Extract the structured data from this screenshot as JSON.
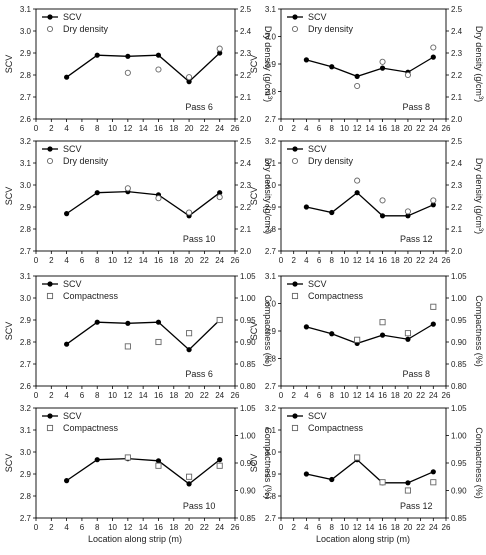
{
  "figure": {
    "shared_xlabel": "Location along strip (m)"
  },
  "chart_data": [
    {
      "id": "c1",
      "type": "line",
      "pass_label": "Pass 6",
      "ylabel_left": "SCV",
      "ylabel_right_main": "Dry density (g/cm",
      "ylabel_right_sup": "3",
      "ylabel_right_end": ")",
      "xlim": [
        0,
        26
      ],
      "xticks": [
        0,
        2,
        4,
        6,
        8,
        10,
        12,
        14,
        16,
        18,
        20,
        22,
        24,
        26
      ],
      "ylim": [
        2.6,
        3.1
      ],
      "yticks": [
        "2.6",
        "2.7",
        "2.8",
        "2.9",
        "3.0",
        "3.1"
      ],
      "ylim_right": [
        2.0,
        2.5
      ],
      "yticks_right": [
        "2.0",
        "2.1",
        "2.2",
        "2.3",
        "2.4",
        "2.5"
      ],
      "series": [
        {
          "name": "SCV",
          "marker": "filled-circle",
          "x": [
            4,
            8,
            12,
            16,
            20,
            24
          ],
          "y": [
            2.79,
            2.89,
            2.885,
            2.89,
            2.77,
            2.9
          ]
        },
        {
          "name": "Dry density",
          "marker": "open-circle",
          "axis": "right",
          "x": [
            12,
            16,
            20,
            24
          ],
          "y": [
            2.21,
            2.225,
            2.19,
            2.32
          ]
        }
      ]
    },
    {
      "id": "c2",
      "type": "line",
      "pass_label": "Pass 8",
      "ylabel_left": "SCV",
      "ylabel_right_main": "Dry density (g/cm",
      "ylabel_right_sup": "3",
      "ylabel_right_end": ")",
      "xlim": [
        0,
        26
      ],
      "xticks": [
        0,
        2,
        4,
        6,
        8,
        10,
        12,
        14,
        16,
        18,
        20,
        22,
        24,
        26
      ],
      "ylim": [
        2.7,
        3.1
      ],
      "yticks": [
        "2.7",
        "2.8",
        "2.9",
        "3.0",
        "3.1"
      ],
      "ylim_right": [
        2.0,
        2.5
      ],
      "yticks_right": [
        "2.0",
        "2.1",
        "2.2",
        "2.3",
        "2.4",
        "2.5"
      ],
      "series": [
        {
          "name": "SCV",
          "marker": "filled-circle",
          "x": [
            4,
            8,
            12,
            16,
            20,
            24
          ],
          "y": [
            2.915,
            2.89,
            2.855,
            2.885,
            2.87,
            2.925
          ]
        },
        {
          "name": "Dry density",
          "marker": "open-circle",
          "axis": "right",
          "x": [
            12,
            16,
            20,
            24
          ],
          "y": [
            2.15,
            2.26,
            2.2,
            2.325
          ]
        }
      ]
    },
    {
      "id": "c3",
      "type": "line",
      "pass_label": "Pass 10",
      "ylabel_left": "SCV",
      "ylabel_right_main": "Dry density (g/cm",
      "ylabel_right_sup": "3",
      "ylabel_right_end": ")",
      "xlim": [
        0,
        26
      ],
      "xticks": [
        0,
        2,
        4,
        6,
        8,
        10,
        12,
        14,
        16,
        18,
        20,
        22,
        24,
        26
      ],
      "ylim": [
        2.7,
        3.2
      ],
      "yticks": [
        "2.7",
        "2.8",
        "2.9",
        "3.0",
        "3.1",
        "3.2"
      ],
      "ylim_right": [
        2.0,
        2.5
      ],
      "yticks_right": [
        "2.0",
        "2.1",
        "2.2",
        "2.3",
        "2.4",
        "2.5"
      ],
      "series": [
        {
          "name": "SCV",
          "marker": "filled-circle",
          "x": [
            4,
            8,
            12,
            16,
            20,
            24
          ],
          "y": [
            2.87,
            2.965,
            2.97,
            2.955,
            2.86,
            2.965
          ]
        },
        {
          "name": "Dry density",
          "marker": "open-circle",
          "axis": "right",
          "x": [
            12,
            16,
            20,
            24
          ],
          "y": [
            2.285,
            2.24,
            2.175,
            2.245
          ]
        }
      ]
    },
    {
      "id": "c4",
      "type": "line",
      "pass_label": "Pass 12",
      "ylabel_left": "SCV",
      "ylabel_right_main": "Dry density (g/cm",
      "ylabel_right_sup": "3",
      "ylabel_right_end": ")",
      "xlim": [
        0,
        26
      ],
      "xticks": [
        0,
        2,
        4,
        6,
        8,
        10,
        12,
        14,
        16,
        18,
        20,
        22,
        24,
        26
      ],
      "ylim": [
        2.7,
        3.2
      ],
      "yticks": [
        "2.7",
        "2.8",
        "2.9",
        "3.0",
        "3.1",
        "3.2"
      ],
      "ylim_right": [
        2.0,
        2.5
      ],
      "yticks_right": [
        "2.0",
        "2.1",
        "2.2",
        "2.3",
        "2.4",
        "2.5"
      ],
      "series": [
        {
          "name": "SCV",
          "marker": "filled-circle",
          "x": [
            4,
            8,
            12,
            16,
            20,
            24
          ],
          "y": [
            2.9,
            2.875,
            2.965,
            2.86,
            2.86,
            2.91
          ]
        },
        {
          "name": "Dry density",
          "marker": "open-circle",
          "axis": "right",
          "x": [
            12,
            16,
            20,
            24
          ],
          "y": [
            2.32,
            2.23,
            2.18,
            2.23
          ]
        }
      ]
    },
    {
      "id": "c5",
      "type": "line",
      "pass_label": "Pass 6",
      "ylabel_left": "SCV",
      "ylabel_right_main": "Compactness (%)",
      "ylabel_right_sup": "",
      "ylabel_right_end": "",
      "xlim": [
        0,
        26
      ],
      "xticks": [
        0,
        2,
        4,
        6,
        8,
        10,
        12,
        14,
        16,
        18,
        20,
        22,
        24,
        26
      ],
      "ylim": [
        2.6,
        3.1
      ],
      "yticks": [
        "2.6",
        "2.7",
        "2.8",
        "2.9",
        "3.0",
        "3.1"
      ],
      "ylim_right": [
        0.8,
        1.05
      ],
      "yticks_right": [
        "0.80",
        "0.85",
        "0.90",
        "0.95",
        "1.00",
        "1.05"
      ],
      "series": [
        {
          "name": "SCV",
          "marker": "filled-circle",
          "x": [
            4,
            8,
            12,
            16,
            20,
            24
          ],
          "y": [
            2.79,
            2.89,
            2.885,
            2.89,
            2.765,
            2.9
          ]
        },
        {
          "name": "Compactness",
          "marker": "open-square",
          "axis": "right",
          "x": [
            12,
            16,
            20,
            24
          ],
          "y": [
            0.89,
            0.9,
            0.92,
            0.95
          ]
        }
      ]
    },
    {
      "id": "c6",
      "type": "line",
      "pass_label": "Pass 8",
      "ylabel_left": "SCV",
      "ylabel_right_main": "Compactness (%)",
      "ylabel_right_sup": "",
      "ylabel_right_end": "",
      "xlim": [
        0,
        26
      ],
      "xticks": [
        0,
        2,
        4,
        6,
        8,
        10,
        12,
        14,
        16,
        18,
        20,
        22,
        24,
        26
      ],
      "ylim": [
        2.7,
        3.1
      ],
      "yticks": [
        "2.7",
        "2.8",
        "2.9",
        "3.0",
        "3.1"
      ],
      "ylim_right": [
        0.8,
        1.05
      ],
      "yticks_right": [
        "0.80",
        "0.85",
        "0.90",
        "0.95",
        "1.00",
        "1.05"
      ],
      "series": [
        {
          "name": "SCV",
          "marker": "filled-circle",
          "x": [
            4,
            8,
            12,
            16,
            20,
            24
          ],
          "y": [
            2.915,
            2.89,
            2.855,
            2.885,
            2.87,
            2.925
          ]
        },
        {
          "name": "Compactness",
          "marker": "open-square",
          "axis": "right",
          "x": [
            12,
            16,
            20,
            24
          ],
          "y": [
            0.905,
            0.945,
            0.92,
            0.98
          ]
        }
      ]
    },
    {
      "id": "c7",
      "type": "line",
      "pass_label": "Pass 10",
      "ylabel_left": "SCV",
      "ylabel_right_main": "Compactness (%)",
      "ylabel_right_sup": "",
      "ylabel_right_end": "",
      "xlim": [
        0,
        26
      ],
      "xticks": [
        0,
        2,
        4,
        6,
        8,
        10,
        12,
        14,
        16,
        18,
        20,
        22,
        24,
        26
      ],
      "ylim": [
        2.7,
        3.2
      ],
      "yticks": [
        "2.7",
        "2.8",
        "2.9",
        "3.0",
        "3.1",
        "3.2"
      ],
      "ylim_right": [
        0.85,
        1.05
      ],
      "yticks_right": [
        "0.85",
        "0.90",
        "0.95",
        "1.00",
        "1.05"
      ],
      "series": [
        {
          "name": "SCV",
          "marker": "filled-circle",
          "x": [
            4,
            8,
            12,
            16,
            20,
            24
          ],
          "y": [
            2.87,
            2.965,
            2.97,
            2.96,
            2.855,
            2.965
          ]
        },
        {
          "name": "Compactness",
          "marker": "open-square",
          "axis": "right",
          "x": [
            12,
            16,
            20,
            24
          ],
          "y": [
            0.96,
            0.945,
            0.925,
            0.945
          ]
        }
      ]
    },
    {
      "id": "c8",
      "type": "line",
      "pass_label": "Pass 12",
      "ylabel_left": "SCV",
      "ylabel_right_main": "Compactness (%)",
      "ylabel_right_sup": "",
      "ylabel_right_end": "",
      "xlim": [
        0,
        26
      ],
      "xticks": [
        0,
        2,
        4,
        6,
        8,
        10,
        12,
        14,
        16,
        18,
        20,
        22,
        24,
        26
      ],
      "ylim": [
        2.7,
        3.2
      ],
      "yticks": [
        "2.7",
        "2.8",
        "2.9",
        "3.0",
        "3.1",
        "3.2"
      ],
      "ylim_right": [
        0.85,
        1.05
      ],
      "yticks_right": [
        "0.85",
        "0.90",
        "0.95",
        "1.00",
        "1.05"
      ],
      "series": [
        {
          "name": "SCV",
          "marker": "filled-circle",
          "x": [
            4,
            8,
            12,
            16,
            20,
            24
          ],
          "y": [
            2.9,
            2.875,
            2.965,
            2.86,
            2.86,
            2.91
          ]
        },
        {
          "name": "Compactness",
          "marker": "open-square",
          "axis": "right",
          "x": [
            12,
            16,
            20,
            24
          ],
          "y": [
            0.96,
            0.915,
            0.9,
            0.915
          ]
        }
      ]
    }
  ]
}
